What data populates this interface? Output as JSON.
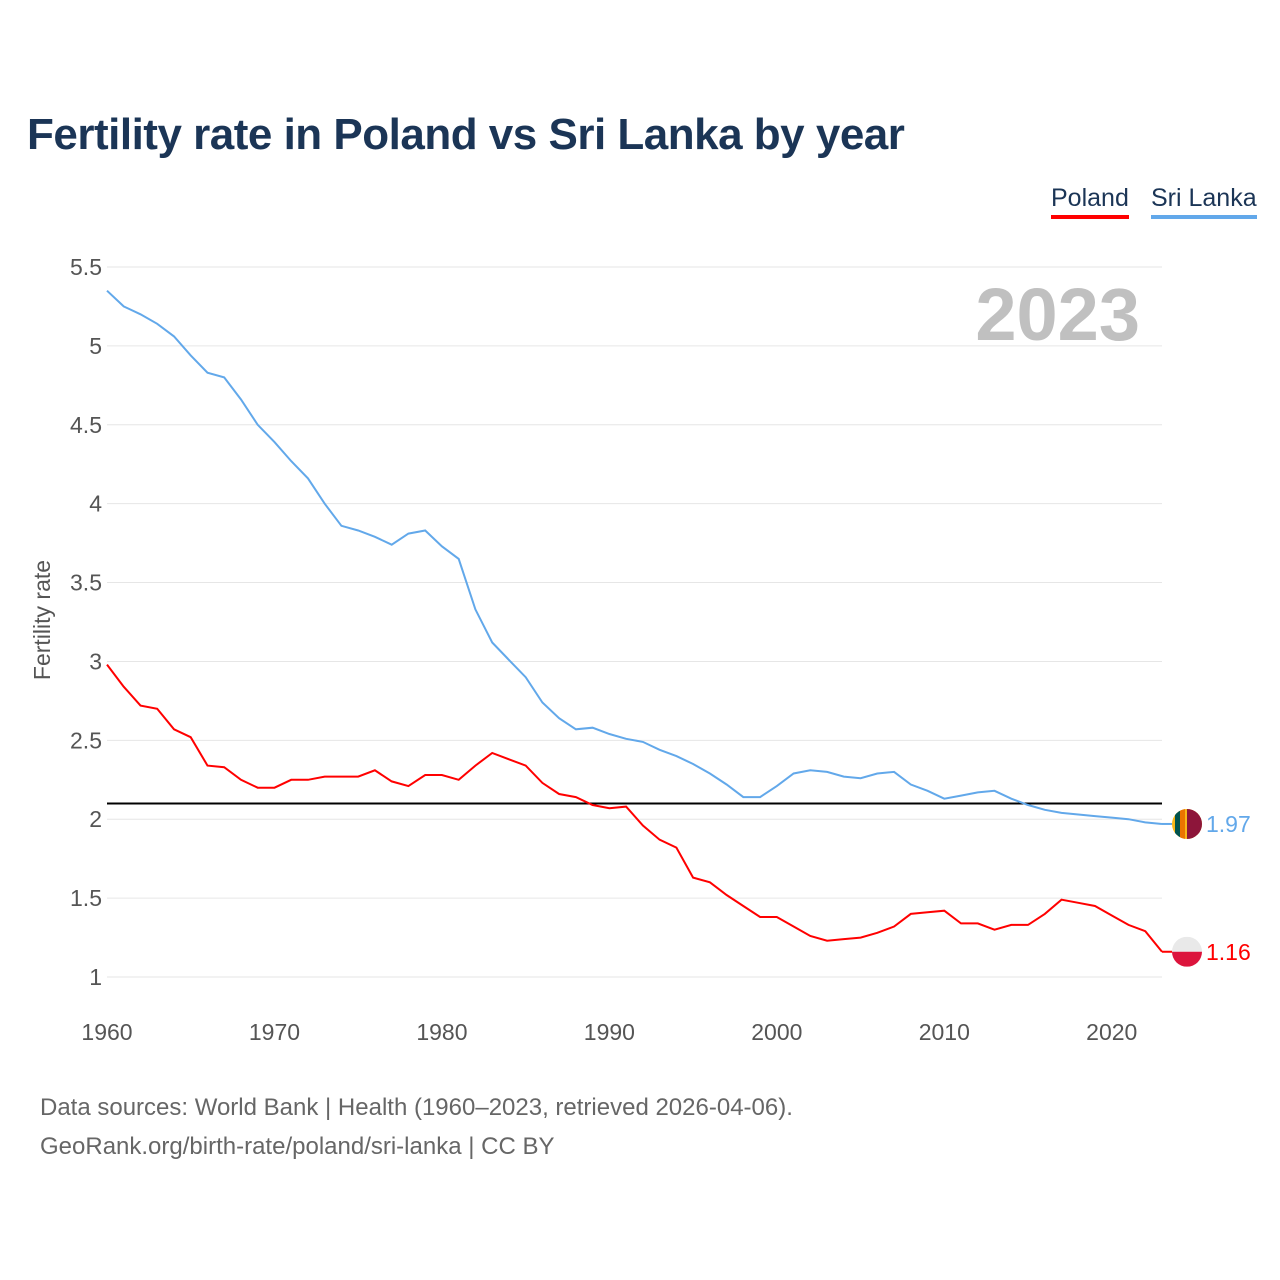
{
  "chart_data": {
    "type": "line",
    "title": "Fertility rate in Poland vs Sri Lanka by year",
    "xlabel": "",
    "ylabel": "Fertility rate",
    "xlim": [
      1960,
      2023
    ],
    "ylim": [
      1,
      5.5
    ],
    "x_ticks": [
      "1960",
      "1970",
      "1980",
      "1990",
      "2000",
      "2010",
      "2020"
    ],
    "y_ticks": [
      "1",
      "1.5",
      "2",
      "2.5",
      "3",
      "3.5",
      "4",
      "4.5",
      "5",
      "5.5"
    ],
    "grid": true,
    "legend_position": "top-right",
    "year_label": "2023",
    "reference_line": 2.1,
    "x": [
      1960,
      1961,
      1962,
      1963,
      1964,
      1965,
      1966,
      1967,
      1968,
      1969,
      1970,
      1971,
      1972,
      1973,
      1974,
      1975,
      1976,
      1977,
      1978,
      1979,
      1980,
      1981,
      1982,
      1983,
      1984,
      1985,
      1986,
      1987,
      1988,
      1989,
      1990,
      1991,
      1992,
      1993,
      1994,
      1995,
      1996,
      1997,
      1998,
      1999,
      2000,
      2001,
      2002,
      2003,
      2004,
      2005,
      2006,
      2007,
      2008,
      2009,
      2010,
      2011,
      2012,
      2013,
      2014,
      2015,
      2016,
      2017,
      2018,
      2019,
      2020,
      2021,
      2022,
      2023
    ],
    "series": [
      {
        "name": "Poland",
        "color": "#ff0000",
        "end_label": "1.16",
        "values": [
          2.98,
          2.84,
          2.72,
          2.7,
          2.57,
          2.52,
          2.34,
          2.33,
          2.25,
          2.2,
          2.2,
          2.25,
          2.25,
          2.27,
          2.27,
          2.27,
          2.31,
          2.24,
          2.21,
          2.28,
          2.28,
          2.25,
          2.34,
          2.42,
          2.38,
          2.34,
          2.23,
          2.16,
          2.14,
          2.09,
          2.07,
          2.08,
          1.96,
          1.87,
          1.82,
          1.63,
          1.6,
          1.52,
          1.45,
          1.38,
          1.38,
          1.32,
          1.26,
          1.23,
          1.24,
          1.25,
          1.28,
          1.32,
          1.4,
          1.41,
          1.42,
          1.34,
          1.34,
          1.3,
          1.33,
          1.33,
          1.4,
          1.49,
          1.47,
          1.45,
          1.39,
          1.33,
          1.29,
          1.16
        ]
      },
      {
        "name": "Sri Lanka",
        "color": "#62a8ea",
        "end_label": "1.97",
        "values": [
          5.35,
          5.25,
          5.2,
          5.14,
          5.06,
          4.94,
          4.83,
          4.8,
          4.66,
          4.5,
          4.39,
          4.27,
          4.16,
          4.0,
          3.86,
          3.83,
          3.79,
          3.74,
          3.81,
          3.83,
          3.73,
          3.65,
          3.33,
          3.12,
          3.01,
          2.9,
          2.74,
          2.64,
          2.57,
          2.58,
          2.54,
          2.51,
          2.49,
          2.44,
          2.4,
          2.35,
          2.29,
          2.22,
          2.14,
          2.14,
          2.21,
          2.29,
          2.31,
          2.3,
          2.27,
          2.26,
          2.29,
          2.3,
          2.22,
          2.18,
          2.13,
          2.15,
          2.17,
          2.18,
          2.13,
          2.09,
          2.06,
          2.04,
          2.03,
          2.02,
          2.01,
          2.0,
          1.98,
          1.97
        ]
      }
    ]
  },
  "footer": {
    "line1": "Data sources: World Bank | Health (1960–2023, retrieved 2026-04-06).",
    "line2": "GeoRank.org/birth-rate/poland/sri-lanka | CC BY"
  }
}
